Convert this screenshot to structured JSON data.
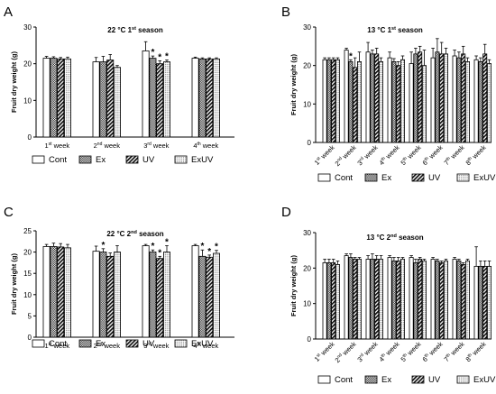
{
  "legend": [
    "Cont",
    "Ex",
    "UV",
    "ExUV"
  ],
  "patterns": [
    "blank",
    "checker",
    "diagonal",
    "dots"
  ],
  "chart_data": [
    {
      "panel": "A",
      "type": "bar",
      "title": "22 °C 1st season",
      "title_parts": [
        "22 °C 1",
        "st",
        " season"
      ],
      "ylabel": "Fruit dry weight (g)",
      "ylim": [
        0,
        30
      ],
      "yticks": [
        0,
        10,
        20,
        30
      ],
      "categories": [
        {
          "prefix": "1",
          "sup": "st",
          "suffix": " week"
        },
        {
          "prefix": "2",
          "sup": "nd",
          "suffix": " week"
        },
        {
          "prefix": "3",
          "sup": "rd",
          "suffix": " week"
        },
        {
          "prefix": "4",
          "sup": "th",
          "suffix": " week"
        }
      ],
      "x_labels_rotated": false,
      "series": [
        {
          "name": "Cont",
          "values": [
            21.5,
            20.5,
            23.5,
            21.5
          ],
          "errors": [
            0.5,
            1.2,
            2.5,
            0.3
          ],
          "signif": [
            false,
            false,
            false,
            false
          ]
        },
        {
          "name": "Ex",
          "values": [
            21.5,
            20.5,
            21.5,
            21.3
          ],
          "errors": [
            0.4,
            1.5,
            0.6,
            0.3
          ],
          "signif": [
            false,
            false,
            true,
            false
          ]
        },
        {
          "name": "UV",
          "values": [
            21.3,
            21.0,
            20.0,
            21.3
          ],
          "errors": [
            0.4,
            1.5,
            0.8,
            0.3
          ],
          "signif": [
            false,
            false,
            true,
            false
          ]
        },
        {
          "name": "ExUV",
          "values": [
            21.3,
            19.0,
            20.5,
            21.3
          ],
          "errors": [
            0.5,
            0.5,
            0.5,
            0.3
          ],
          "signif": [
            false,
            false,
            true,
            false
          ]
        }
      ]
    },
    {
      "panel": "B",
      "type": "bar",
      "title": "13 °C 1st season",
      "title_parts": [
        "13 °C 1",
        "st",
        " season"
      ],
      "ylabel": "Fruit dry weight (g)",
      "ylim": [
        0,
        30
      ],
      "yticks": [
        0,
        10,
        20,
        30
      ],
      "categories": [
        {
          "prefix": "1",
          "sup": "st",
          "suffix": " week"
        },
        {
          "prefix": "2",
          "sup": "nd",
          "suffix": " week"
        },
        {
          "prefix": "3",
          "sup": "rd",
          "suffix": " week"
        },
        {
          "prefix": "4",
          "sup": "th",
          "suffix": " week"
        },
        {
          "prefix": "5",
          "sup": "th",
          "suffix": " week"
        },
        {
          "prefix": "6",
          "sup": "th",
          "suffix": " week"
        },
        {
          "prefix": "7",
          "sup": "th",
          "suffix": " week"
        },
        {
          "prefix": "8",
          "sup": "th",
          "suffix": " week"
        }
      ],
      "x_labels_rotated": true,
      "series": [
        {
          "name": "Cont",
          "values": [
            21.5,
            24.0,
            23.5,
            22.0,
            20.5,
            22.0,
            22.5,
            21.5
          ],
          "errors": [
            0.5,
            0.5,
            2.5,
            1.5,
            3.0,
            2.5,
            1.5,
            1.0
          ],
          "signif": [
            false,
            false,
            false,
            false,
            false,
            false,
            false,
            false
          ]
        },
        {
          "name": "Ex",
          "values": [
            21.5,
            21.0,
            23.0,
            21.0,
            23.0,
            23.5,
            22.0,
            21.0
          ],
          "errors": [
            0.5,
            0.5,
            1.0,
            0.8,
            1.5,
            3.5,
            1.5,
            1.0
          ],
          "signif": [
            false,
            true,
            false,
            false,
            false,
            false,
            false,
            false
          ]
        },
        {
          "name": "UV",
          "values": [
            21.5,
            19.5,
            23.0,
            20.0,
            23.5,
            23.0,
            23.0,
            23.0
          ],
          "errors": [
            0.5,
            2.5,
            1.5,
            1.0,
            1.5,
            3.0,
            2.0,
            2.5
          ],
          "signif": [
            false,
            false,
            false,
            false,
            false,
            false,
            false,
            false
          ]
        },
        {
          "name": "ExUV",
          "values": [
            21.5,
            21.0,
            21.0,
            21.5,
            20.0,
            23.0,
            21.0,
            20.5
          ],
          "errors": [
            0.5,
            2.5,
            1.0,
            1.0,
            4.0,
            1.5,
            1.0,
            1.0
          ],
          "signif": [
            false,
            false,
            false,
            false,
            false,
            false,
            false,
            false
          ]
        }
      ]
    },
    {
      "panel": "C",
      "type": "bar",
      "title": "22 °C 2nd season",
      "title_parts": [
        "22 °C 2",
        "nd",
        " season"
      ],
      "ylabel": "Fruit dry weight (g)",
      "ylim": [
        0,
        25
      ],
      "yticks": [
        0,
        5,
        10,
        15,
        20,
        25
      ],
      "categories": [
        {
          "prefix": "1",
          "sup": "st",
          "suffix": " week"
        },
        {
          "prefix": "2",
          "sup": "nd",
          "suffix": " week"
        },
        {
          "prefix": "3",
          "sup": "rd",
          "suffix": " week"
        },
        {
          "prefix": "4",
          "sup": "th",
          "suffix": " week"
        }
      ],
      "x_labels_rotated": false,
      "series": [
        {
          "name": "Cont",
          "values": [
            21.3,
            20.2,
            21.5,
            21.5
          ],
          "errors": [
            0.5,
            1.2,
            0.3,
            0.3
          ],
          "signif": [
            false,
            false,
            false,
            false
          ]
        },
        {
          "name": "Ex",
          "values": [
            21.3,
            20.0,
            20.0,
            19.0
          ],
          "errors": [
            0.8,
            0.8,
            0.5,
            1.5
          ],
          "signif": [
            false,
            true,
            true,
            true
          ]
        },
        {
          "name": "UV",
          "values": [
            21.2,
            19.0,
            18.5,
            18.8
          ],
          "errors": [
            0.8,
            0.8,
            0.5,
            0.5
          ],
          "signif": [
            false,
            false,
            true,
            true
          ]
        },
        {
          "name": "ExUV",
          "values": [
            21.0,
            20.0,
            20.0,
            19.7
          ],
          "errors": [
            0.8,
            1.5,
            1.5,
            0.7
          ],
          "signif": [
            false,
            false,
            true,
            true
          ]
        }
      ]
    },
    {
      "panel": "D",
      "type": "bar",
      "title": "13 °C 2nd season",
      "title_parts": [
        "13 °C 2",
        "nd",
        " season"
      ],
      "ylabel": "Fruit dry weight (g)",
      "ylim": [
        0,
        30
      ],
      "yticks": [
        0,
        10,
        20,
        30
      ],
      "categories": [
        {
          "prefix": "1",
          "sup": "st",
          "suffix": " week"
        },
        {
          "prefix": "2",
          "sup": "nd",
          "suffix": " week"
        },
        {
          "prefix": "3",
          "sup": "rd",
          "suffix": " week"
        },
        {
          "prefix": "4",
          "sup": "th",
          "suffix": " week"
        },
        {
          "prefix": "5",
          "sup": "th",
          "suffix": " week"
        },
        {
          "prefix": "6",
          "sup": "th",
          "suffix": " week"
        },
        {
          "prefix": "7",
          "sup": "th",
          "suffix": " week"
        },
        {
          "prefix": "8",
          "sup": "th",
          "suffix": " week"
        }
      ],
      "x_labels_rotated": true,
      "series": [
        {
          "name": "Cont",
          "values": [
            21.5,
            23.5,
            22.5,
            23.0,
            23.0,
            22.5,
            22.5,
            20.5
          ],
          "errors": [
            1.0,
            0.5,
            1.0,
            0.5,
            0.5,
            0.5,
            0.5,
            5.5
          ],
          "signif": [
            false,
            false,
            false,
            false,
            false,
            false,
            false,
            false
          ]
        },
        {
          "name": "Ex",
          "values": [
            21.5,
            23.0,
            22.5,
            22.0,
            21.5,
            22.0,
            22.0,
            20.5
          ],
          "errors": [
            1.0,
            1.0,
            1.5,
            1.0,
            1.0,
            0.5,
            0.5,
            1.5
          ],
          "signif": [
            false,
            false,
            false,
            false,
            false,
            false,
            false,
            false
          ]
        },
        {
          "name": "UV",
          "values": [
            21.5,
            22.5,
            22.5,
            22.0,
            22.5,
            21.5,
            21.0,
            20.5
          ],
          "errors": [
            1.0,
            0.5,
            1.0,
            1.0,
            0.5,
            0.5,
            0.5,
            1.5
          ],
          "signif": [
            false,
            false,
            false,
            false,
            false,
            false,
            false,
            false
          ]
        },
        {
          "name": "ExUV",
          "values": [
            21.0,
            22.5,
            22.5,
            22.5,
            22.0,
            22.0,
            22.0,
            20.5
          ],
          "errors": [
            1.0,
            0.5,
            1.0,
            0.5,
            0.5,
            0.5,
            0.5,
            1.5
          ],
          "signif": [
            false,
            false,
            false,
            false,
            false,
            false,
            false,
            false
          ]
        }
      ]
    }
  ]
}
